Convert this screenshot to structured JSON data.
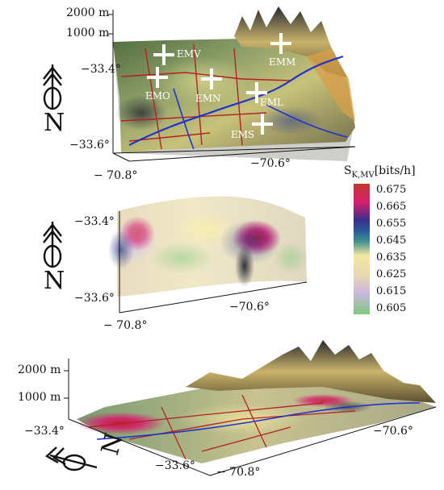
{
  "panel_top": {
    "elevation_ticks": [
      "2000 m",
      "1000 m"
    ],
    "lat_ticks": [
      "−33.4°",
      "−33.6°"
    ],
    "lon_ticks": [
      "− 70.8°",
      "−70.6°"
    ],
    "stations": [
      "EMV",
      "EMM",
      "EMO",
      "EMN",
      "EML",
      "EMS"
    ],
    "north_label": "N"
  },
  "panel_middle": {
    "lat_ticks": [
      "−33.4°",
      "−33.6°"
    ],
    "lon_ticks": [
      "− 70.8°",
      "−70.6°"
    ],
    "north_label": "N"
  },
  "panel_bottom": {
    "elevation_ticks": [
      "2000 m",
      "1000 m"
    ],
    "lat_ticks": [
      "−33.4°",
      "−33.6°"
    ],
    "lon_ticks": [
      "−70.6°",
      "− 70.8°"
    ],
    "north_label": "N"
  },
  "colorbar": {
    "title_main": "S",
    "title_sub": "K,MV",
    "title_unit": "[bits/h]",
    "ticks": [
      "0.675",
      "0.665",
      "0.655",
      "0.645",
      "0.635",
      "0.625",
      "0.615",
      "0.605"
    ],
    "colors": [
      "#c0392b",
      "#d6206e",
      "#2b3b8a",
      "#3f8f8f",
      "#f2e8a0",
      "#e8d8b0",
      "#c8b8e0",
      "#7ec87a"
    ]
  }
}
